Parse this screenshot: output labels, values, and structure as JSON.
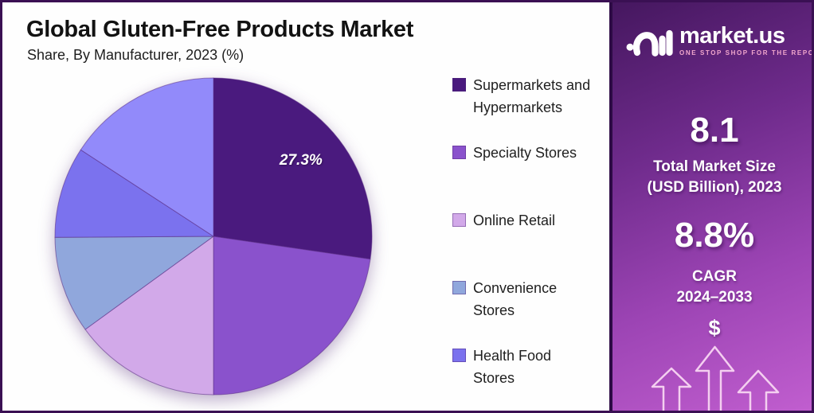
{
  "header": {
    "title": "Global Gluten-Free Products Market",
    "subtitle": "Share, By Manufacturer, 2023 (%)"
  },
  "chart_data": {
    "type": "pie",
    "title": "Global Gluten-Free Products Market",
    "subtitle": "Share, By Manufacturer, 2023 (%)",
    "start_angle_deg_from_top": 0,
    "direction": "clockwise",
    "legend_position": "right",
    "slices": [
      {
        "label": "Supermarkets and Hypermarkets",
        "value": 27.3,
        "color": "#4A1A7E",
        "data_label": "27.3%"
      },
      {
        "label": "Specialty Stores",
        "value": 22.7,
        "color": "#8A52CC",
        "data_label": ""
      },
      {
        "label": "Online Retail",
        "value": 15.0,
        "color": "#D2A9E9",
        "data_label": ""
      },
      {
        "label": "Convenience Stores",
        "value": 9.9,
        "color": "#90A7DC",
        "data_label": ""
      },
      {
        "label": "Health Food Stores",
        "value": 9.3,
        "color": "#7B72EE",
        "data_label": ""
      },
      {
        "label": "",
        "value": 15.8,
        "color": "#928AFA",
        "data_label": ""
      }
    ]
  },
  "legend": {
    "items": [
      {
        "label": "Supermarkets and Hypermarkets",
        "color": "#4A1A7E"
      },
      {
        "label": "Specialty Stores",
        "color": "#8A52CC"
      },
      {
        "label": "Online Retail",
        "color": "#D2A9E9"
      },
      {
        "label": "Convenience Stores",
        "color": "#90A7DC"
      },
      {
        "label": "Health Food Stores",
        "color": "#7B72EE"
      }
    ]
  },
  "brand_panel": {
    "logo_text": "market.us",
    "logo_tagline": "ONE STOP SHOP FOR THE REPORTS",
    "market_size_value": "8.1",
    "market_size_label_line1": "Total Market Size",
    "market_size_label_line2": "(USD Billion), 2023",
    "cagr_value": "8.8%",
    "cagr_label": "CAGR",
    "cagr_period": "2024–2033",
    "dollar_symbol": "$"
  },
  "colors": {
    "frame_border": "#3A1053",
    "canvas_background": "#FEFEFE",
    "panel_gradient_top": "#45175F",
    "panel_gradient_bottom": "#C25FD0",
    "panel_divider": "#2D0B45",
    "arrow_outline": "#F4CFF0",
    "tagline": "#F2A7CD",
    "pie_label_text": "#FFFFFF"
  }
}
